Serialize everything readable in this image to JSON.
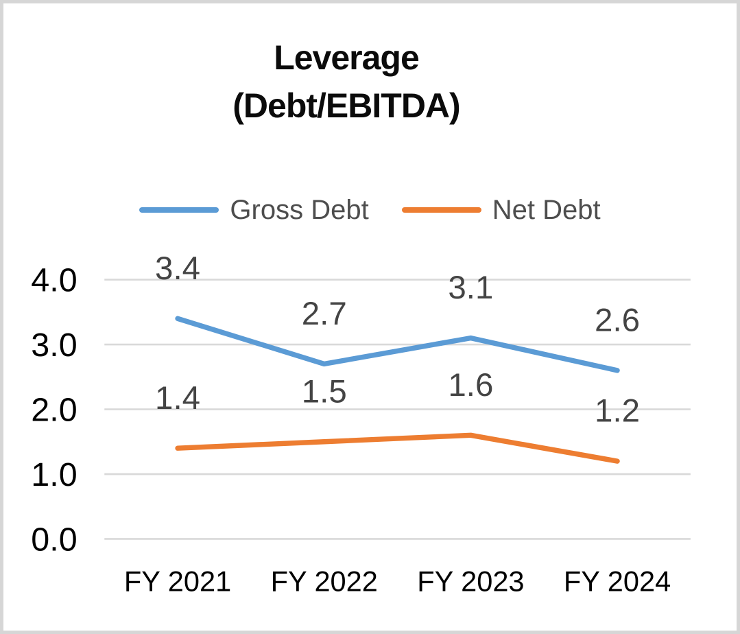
{
  "window": {
    "background": "#FFFFFF",
    "border_color": "#D6D6D6"
  },
  "chart_data": {
    "type": "line",
    "title": "Leverage (Debt/EBITDA)",
    "title_lines": [
      "Leverage",
      "(Debt/EBITDA)"
    ],
    "categories": [
      "FY 2021",
      "FY 2022",
      "FY 2023",
      "FY 2024"
    ],
    "series": [
      {
        "name": "Gross Debt",
        "color": "#5B9BD5",
        "values": [
          3.4,
          2.7,
          3.1,
          2.6
        ],
        "labels": [
          "3.4",
          "2.7",
          "3.1",
          "2.6"
        ]
      },
      {
        "name": "Net Debt",
        "color": "#ED7D31",
        "values": [
          1.4,
          1.5,
          1.6,
          1.2
        ],
        "labels": [
          "1.4",
          "1.5",
          "1.6",
          "1.2"
        ]
      }
    ],
    "y_axis": {
      "min": 0.0,
      "max": 4.0,
      "step": 1.0,
      "tick_labels": [
        "0.0",
        "1.0",
        "2.0",
        "3.0",
        "4.0"
      ]
    },
    "legend_position": "top",
    "grid": true,
    "styles": {
      "gridline_color": "#D9D9D9",
      "axis_text_color": "#000000",
      "data_label_color": "#444444",
      "legend_text_color": "#4D4D4D",
      "title_color": "#0B0B0B",
      "line_width": 7.5
    }
  }
}
